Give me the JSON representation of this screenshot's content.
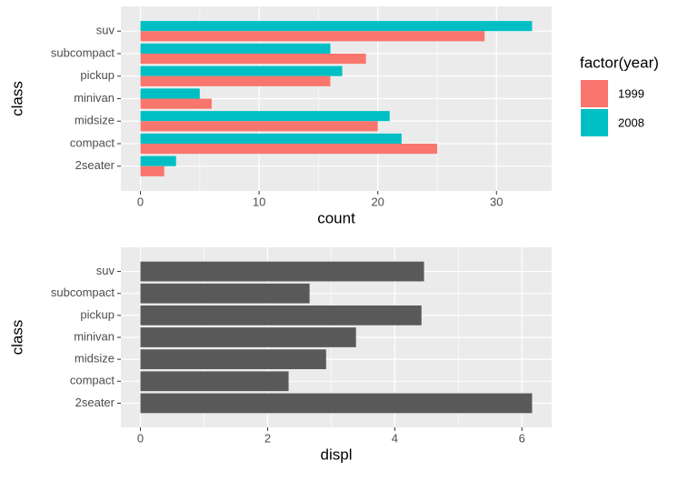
{
  "chart_data": [
    {
      "type": "bar",
      "orientation": "horizontal",
      "xlabel": "count",
      "ylabel": "class",
      "categories": [
        "suv",
        "subcompact",
        "pickup",
        "minivan",
        "midsize",
        "compact",
        "2seater"
      ],
      "series": [
        {
          "name": "2008",
          "color": "#00bfc4",
          "values": [
            33,
            16,
            17,
            5,
            21,
            22,
            3
          ]
        },
        {
          "name": "1999",
          "color": "#f8766d",
          "values": [
            29,
            19,
            16,
            6,
            20,
            25,
            2
          ]
        }
      ],
      "legend_title": "factor(year)",
      "legend_order": [
        1,
        0
      ],
      "legend": "right",
      "xlim": [
        -1.65,
        34.65
      ],
      "xticks": [
        0,
        10,
        20,
        30
      ],
      "grid": true
    },
    {
      "type": "bar",
      "orientation": "horizontal",
      "xlabel": "displ",
      "ylabel": "class",
      "categories": [
        "suv",
        "subcompact",
        "pickup",
        "minivan",
        "midsize",
        "compact",
        "2seater"
      ],
      "values": [
        4.46,
        2.66,
        4.42,
        3.39,
        2.92,
        2.33,
        6.16
      ],
      "color": "#595959",
      "xlim": [
        -0.308,
        6.468
      ],
      "xticks": [
        0,
        2,
        4,
        6
      ],
      "grid": true
    }
  ]
}
